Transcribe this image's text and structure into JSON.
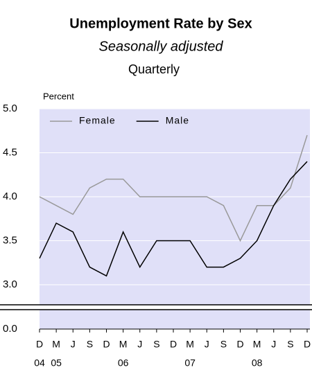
{
  "chart_data": {
    "type": "line",
    "title": "Unemployment Rate by Sex",
    "subtitle": "Seasonally adjusted",
    "frequency": "Quarterly",
    "y_label": "Percent",
    "categories": [
      "D",
      "M",
      "J",
      "S",
      "D",
      "M",
      "J",
      "S",
      "D",
      "M",
      "J",
      "S",
      "D",
      "M",
      "J",
      "S",
      "D"
    ],
    "x_year_labels": [
      "04",
      "05",
      null,
      null,
      null,
      "06",
      null,
      null,
      null,
      "07",
      null,
      null,
      null,
      "08",
      null,
      null,
      null
    ],
    "series": [
      {
        "name": "Female",
        "color": "#999999",
        "values": [
          4.0,
          3.9,
          3.8,
          4.1,
          4.2,
          4.2,
          4.0,
          4.0,
          4.0,
          4.0,
          4.0,
          3.9,
          3.5,
          3.9,
          3.9,
          4.1,
          4.7
        ]
      },
      {
        "name": "Male",
        "color": "#000000",
        "values": [
          3.3,
          3.7,
          3.6,
          3.2,
          3.1,
          3.6,
          3.2,
          3.5,
          3.5,
          3.5,
          3.2,
          3.2,
          3.3,
          3.5,
          3.9,
          4.2,
          4.4
        ]
      }
    ],
    "ylim": [
      3.0,
      5.0
    ],
    "yticks": [
      {
        "value": 0,
        "label": "0.0"
      },
      {
        "value": 3,
        "label": "3.0"
      },
      3.5,
      {
        "value": 4,
        "label": "4.0"
      },
      4.5,
      {
        "value": 5,
        "label": "5.0"
      }
    ],
    "axis_break": true,
    "grid": true,
    "legend": "top-left",
    "background": "#e0e0f8"
  }
}
